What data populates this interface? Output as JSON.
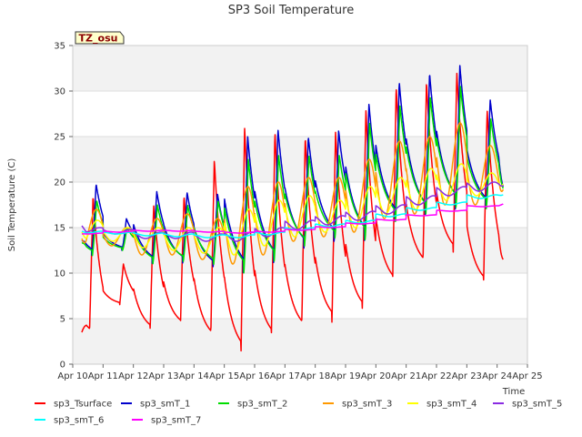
{
  "chart_data": {
    "type": "line",
    "title": "SP3 Soil Temperature",
    "xlabel": "Time",
    "ylabel": "Soil Temperature (C)",
    "site_label": "TZ_osu",
    "xlim": [
      "Apr 10",
      "Apr 25"
    ],
    "ylim": [
      0,
      35
    ],
    "x_ticks": [
      "Apr 10",
      "Apr 11",
      "Apr 12",
      "Apr 13",
      "Apr 14",
      "Apr 15",
      "Apr 16",
      "Apr 17",
      "Apr 18",
      "Apr 19",
      "Apr 20",
      "Apr 21",
      "Apr 22",
      "Apr 23",
      "Apr 24",
      "Apr 25"
    ],
    "y_ticks": [
      0,
      5,
      10,
      15,
      20,
      25,
      30,
      35
    ],
    "grid": "alternating horizontal bands",
    "legend_position": "bottom",
    "series": [
      {
        "name": "sp3_Tsurface",
        "color": "#ff0000",
        "daily_max": [
          18.5,
          11.0,
          17.5,
          18.5,
          22.5,
          26.0,
          25.5,
          25.0,
          25.5,
          28.0,
          30.5,
          31.0,
          32.0,
          28.0
        ],
        "daily_min": [
          3.0,
          6.5,
          3.5,
          4.0,
          2.5,
          1.0,
          2.5,
          3.5,
          4.5,
          5.5,
          8.5,
          10.5,
          12.0,
          8.5
        ],
        "start": 3.5,
        "end": 11.5
      },
      {
        "name": "sp3_smT_1",
        "color": "#0000cc",
        "daily_max": [
          19.8,
          16.0,
          19.0,
          18.9,
          18.8,
          25.0,
          25.8,
          25.0,
          25.7,
          28.6,
          31.0,
          32.0,
          32.8,
          29.1
        ],
        "daily_min": [
          11.8,
          12.5,
          11.0,
          11.0,
          10.5,
          10.0,
          11.0,
          12.5,
          13.5,
          13.5,
          15.5,
          16.0,
          17.0,
          17.0
        ],
        "start": 13.5,
        "end": 19.5
      },
      {
        "name": "sp3_smT_2",
        "color": "#00dd00",
        "daily_max": [
          18.0,
          15.0,
          17.5,
          17.5,
          18.0,
          22.5,
          23.0,
          23.0,
          23.0,
          26.5,
          28.5,
          29.5,
          30.5,
          27.0
        ],
        "daily_min": [
          11.8,
          12.5,
          11.0,
          11.2,
          10.8,
          10.0,
          11.2,
          12.8,
          13.6,
          13.6,
          15.5,
          16.2,
          17.2,
          17.0
        ],
        "start": 13.3,
        "end": 19.3
      },
      {
        "name": "sp3_smT_3",
        "color": "#ff9900",
        "daily_max": [
          17.0,
          15.0,
          16.0,
          16.5,
          16.0,
          19.5,
          20.0,
          20.5,
          20.5,
          22.5,
          24.5,
          25.0,
          26.5,
          24.0
        ],
        "daily_min": [
          12.5,
          13.0,
          12.0,
          12.0,
          11.5,
          11.0,
          12.0,
          13.5,
          14.0,
          14.5,
          16.0,
          16.5,
          17.5,
          17.5
        ],
        "start": 13.8,
        "end": 19.2
      },
      {
        "name": "sp3_smT_4",
        "color": "#ffff00",
        "daily_max": [
          15.8,
          15.0,
          15.0,
          15.0,
          15.0,
          17.0,
          18.0,
          18.5,
          18.0,
          19.5,
          20.5,
          21.5,
          22.0,
          21.0
        ],
        "daily_min": [
          13.5,
          13.5,
          12.8,
          12.5,
          12.2,
          12.0,
          13.0,
          14.0,
          14.5,
          15.0,
          16.5,
          17.0,
          18.0,
          18.5
        ],
        "start": 14.5,
        "end": 19.8
      },
      {
        "name": "sp3_smT_5",
        "color": "#8a2be2",
        "daily_max": [
          15.0,
          14.8,
          14.5,
          14.5,
          14.3,
          14.5,
          15.0,
          15.8,
          16.3,
          16.8,
          17.5,
          18.5,
          19.5,
          20.0
        ],
        "daily_min": [
          14.5,
          14.3,
          13.8,
          13.8,
          13.5,
          13.5,
          14.0,
          14.8,
          15.3,
          15.8,
          16.5,
          17.5,
          18.5,
          19.0
        ],
        "start": 15.2,
        "end": 19.6
      },
      {
        "name": "sp3_smT_6",
        "color": "#00ffff",
        "daily_max": [
          14.6,
          14.5,
          14.4,
          14.3,
          14.2,
          14.2,
          14.5,
          15.0,
          15.4,
          15.8,
          16.5,
          17.2,
          17.8,
          18.6
        ],
        "daily_min": [
          14.4,
          14.3,
          14.1,
          14.0,
          13.9,
          13.9,
          14.2,
          14.7,
          15.1,
          15.5,
          16.2,
          16.9,
          17.5,
          18.2
        ],
        "start": 14.6,
        "end": 18.6
      },
      {
        "name": "sp3_smT_7",
        "color": "#ff00ff",
        "daily_max": [
          14.4,
          14.6,
          14.7,
          14.7,
          14.6,
          14.5,
          14.6,
          14.8,
          15.1,
          15.5,
          15.9,
          16.4,
          16.9,
          17.4
        ],
        "daily_min": [
          14.3,
          14.5,
          14.6,
          14.6,
          14.5,
          14.4,
          14.5,
          14.7,
          15.0,
          15.4,
          15.8,
          16.3,
          16.8,
          17.3
        ],
        "start": 14.3,
        "end": 17.6
      }
    ]
  }
}
